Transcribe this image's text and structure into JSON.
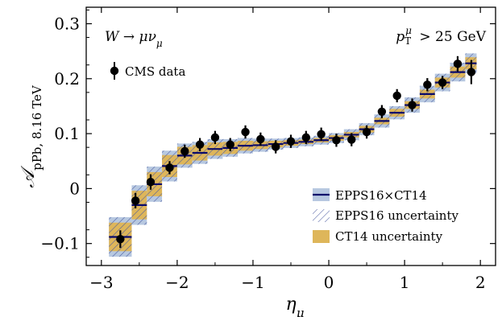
{
  "chart_data": {
    "type": "scatter",
    "xlabel": "η_μ",
    "ylabel": "𝒜_pPb, 8.16 TeV",
    "xlim": [
      -3.2,
      2.2
    ],
    "ylim": [
      -0.14,
      0.33
    ],
    "x_ticks": [
      -3,
      -2,
      -1,
      0,
      1,
      2
    ],
    "x_tick_labels": [
      "−3",
      "−2",
      "−1",
      "0",
      "1",
      "2"
    ],
    "y_ticks": [
      -0.1,
      0,
      0.1,
      0.2,
      0.3
    ],
    "y_tick_labels": [
      "−0.1",
      "0",
      "0.1",
      "0.2",
      "0.3"
    ],
    "annotations": {
      "process": "W → μν_μ",
      "cut": "p_T^μ > 25 GeV"
    },
    "legend_placement": "bottom-right",
    "legend": {
      "data": "CMS data",
      "central": "EPPS16×CT14",
      "epps": "EPPS16 uncertainty",
      "ct14": "CT14 uncertainty"
    },
    "colors": {
      "central_line": "#0a0a6b",
      "epps_band": "#b7c8e0",
      "ct14_band": "#deb65a",
      "hatch": "#4a5aa0",
      "data": "#000000"
    },
    "data_points": [
      {
        "x": -2.75,
        "y": -0.092,
        "err": 0.016
      },
      {
        "x": -2.55,
        "y": -0.022,
        "err": 0.014
      },
      {
        "x": -2.35,
        "y": 0.012,
        "err": 0.014
      },
      {
        "x": -2.1,
        "y": 0.038,
        "err": 0.012
      },
      {
        "x": -1.9,
        "y": 0.068,
        "err": 0.012
      },
      {
        "x": -1.7,
        "y": 0.08,
        "err": 0.012
      },
      {
        "x": -1.5,
        "y": 0.093,
        "err": 0.012
      },
      {
        "x": -1.3,
        "y": 0.08,
        "err": 0.012
      },
      {
        "x": -1.1,
        "y": 0.103,
        "err": 0.012
      },
      {
        "x": -0.9,
        "y": 0.09,
        "err": 0.012
      },
      {
        "x": -0.7,
        "y": 0.076,
        "err": 0.012
      },
      {
        "x": -0.5,
        "y": 0.086,
        "err": 0.012
      },
      {
        "x": -0.3,
        "y": 0.093,
        "err": 0.012
      },
      {
        "x": -0.1,
        "y": 0.099,
        "err": 0.012
      },
      {
        "x": 0.1,
        "y": 0.088,
        "err": 0.012
      },
      {
        "x": 0.3,
        "y": 0.089,
        "err": 0.012
      },
      {
        "x": 0.5,
        "y": 0.103,
        "err": 0.012
      },
      {
        "x": 0.7,
        "y": 0.14,
        "err": 0.012
      },
      {
        "x": 0.9,
        "y": 0.169,
        "err": 0.012
      },
      {
        "x": 1.1,
        "y": 0.152,
        "err": 0.012
      },
      {
        "x": 1.3,
        "y": 0.189,
        "err": 0.012
      },
      {
        "x": 1.5,
        "y": 0.193,
        "err": 0.012
      },
      {
        "x": 1.7,
        "y": 0.227,
        "err": 0.014
      },
      {
        "x": 1.88,
        "y": 0.212,
        "err": 0.022
      }
    ],
    "theory_bins": [
      {
        "x0": -2.9,
        "x1": -2.6,
        "central": -0.088,
        "epps_lo": -0.124,
        "epps_hi": -0.052,
        "ct_lo": -0.114,
        "ct_hi": -0.062
      },
      {
        "x0": -2.6,
        "x1": -2.4,
        "central": -0.03,
        "epps_lo": -0.066,
        "epps_hi": 0.006,
        "ct_lo": -0.056,
        "ct_hi": -0.004
      },
      {
        "x0": -2.4,
        "x1": -2.2,
        "central": 0.008,
        "epps_lo": -0.024,
        "epps_hi": 0.04,
        "ct_lo": -0.014,
        "ct_hi": 0.03
      },
      {
        "x0": -2.2,
        "x1": -2.0,
        "central": 0.041,
        "epps_lo": 0.013,
        "epps_hi": 0.069,
        "ct_lo": 0.021,
        "ct_hi": 0.061
      },
      {
        "x0": -2.0,
        "x1": -1.8,
        "central": 0.06,
        "epps_lo": 0.038,
        "epps_hi": 0.082,
        "ct_lo": 0.044,
        "ct_hi": 0.076
      },
      {
        "x0": -1.8,
        "x1": -1.6,
        "central": 0.065,
        "epps_lo": 0.045,
        "epps_hi": 0.085,
        "ct_lo": 0.051,
        "ct_hi": 0.079
      },
      {
        "x0": -1.6,
        "x1": -1.4,
        "central": 0.072,
        "epps_lo": 0.054,
        "epps_hi": 0.09,
        "ct_lo": 0.06,
        "ct_hi": 0.084
      },
      {
        "x0": -1.4,
        "x1": -1.2,
        "central": 0.074,
        "epps_lo": 0.058,
        "epps_hi": 0.09,
        "ct_lo": 0.063,
        "ct_hi": 0.085
      },
      {
        "x0": -1.2,
        "x1": -1.0,
        "central": 0.078,
        "epps_lo": 0.064,
        "epps_hi": 0.092,
        "ct_lo": 0.069,
        "ct_hi": 0.087
      },
      {
        "x0": -1.0,
        "x1": -0.8,
        "central": 0.079,
        "epps_lo": 0.067,
        "epps_hi": 0.091,
        "ct_lo": 0.072,
        "ct_hi": 0.086
      },
      {
        "x0": -0.8,
        "x1": -0.6,
        "central": 0.081,
        "epps_lo": 0.071,
        "epps_hi": 0.091,
        "ct_lo": 0.075,
        "ct_hi": 0.087
      },
      {
        "x0": -0.6,
        "x1": -0.4,
        "central": 0.083,
        "epps_lo": 0.074,
        "epps_hi": 0.092,
        "ct_lo": 0.078,
        "ct_hi": 0.088
      },
      {
        "x0": -0.4,
        "x1": -0.2,
        "central": 0.085,
        "epps_lo": 0.077,
        "epps_hi": 0.093,
        "ct_lo": 0.081,
        "ct_hi": 0.089
      },
      {
        "x0": -0.2,
        "x1": 0.0,
        "central": 0.088,
        "epps_lo": 0.08,
        "epps_hi": 0.096,
        "ct_lo": 0.084,
        "ct_hi": 0.092
      },
      {
        "x0": 0.0,
        "x1": 0.2,
        "central": 0.092,
        "epps_lo": 0.083,
        "epps_hi": 0.101,
        "ct_lo": 0.087,
        "ct_hi": 0.097
      },
      {
        "x0": 0.2,
        "x1": 0.4,
        "central": 0.098,
        "epps_lo": 0.088,
        "epps_hi": 0.108,
        "ct_lo": 0.093,
        "ct_hi": 0.103
      },
      {
        "x0": 0.4,
        "x1": 0.6,
        "central": 0.108,
        "epps_lo": 0.097,
        "epps_hi": 0.119,
        "ct_lo": 0.102,
        "ct_hi": 0.114
      },
      {
        "x0": 0.6,
        "x1": 0.8,
        "central": 0.123,
        "epps_lo": 0.111,
        "epps_hi": 0.135,
        "ct_lo": 0.117,
        "ct_hi": 0.129
      },
      {
        "x0": 0.8,
        "x1": 1.0,
        "central": 0.138,
        "epps_lo": 0.126,
        "epps_hi": 0.15,
        "ct_lo": 0.131,
        "ct_hi": 0.145
      },
      {
        "x0": 1.0,
        "x1": 1.2,
        "central": 0.152,
        "epps_lo": 0.138,
        "epps_hi": 0.166,
        "ct_lo": 0.145,
        "ct_hi": 0.159
      },
      {
        "x0": 1.2,
        "x1": 1.4,
        "central": 0.172,
        "epps_lo": 0.157,
        "epps_hi": 0.187,
        "ct_lo": 0.164,
        "ct_hi": 0.18
      },
      {
        "x0": 1.4,
        "x1": 1.6,
        "central": 0.193,
        "epps_lo": 0.177,
        "epps_hi": 0.209,
        "ct_lo": 0.184,
        "ct_hi": 0.202
      },
      {
        "x0": 1.6,
        "x1": 1.8,
        "central": 0.212,
        "epps_lo": 0.195,
        "epps_hi": 0.229,
        "ct_lo": 0.202,
        "ct_hi": 0.222
      },
      {
        "x0": 1.8,
        "x1": 1.95,
        "central": 0.228,
        "epps_lo": 0.21,
        "epps_hi": 0.246,
        "ct_lo": 0.217,
        "ct_hi": 0.239
      }
    ]
  }
}
